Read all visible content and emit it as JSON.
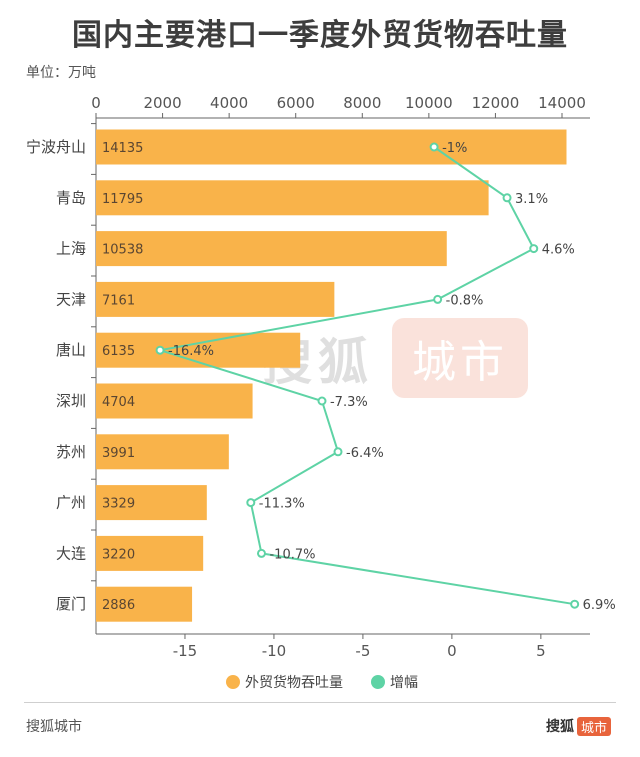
{
  "title": "国内主要港口一季度外贸货物吞吐量",
  "unit_label": "单位：万吨",
  "footer": {
    "brand": "搜狐城市",
    "logo_main": "搜狐",
    "logo_tag": "城市"
  },
  "watermark": {
    "main": "搜狐",
    "tag": "城市"
  },
  "colors": {
    "bar": "#F9B34A",
    "line": "#5ED3A5",
    "axis": "#666666",
    "grid": "#d9d9d9"
  },
  "chart_data": {
    "type": "bar",
    "orientation": "horizontal",
    "categories": [
      "宁波舟山",
      "青岛",
      "上海",
      "天津",
      "唐山",
      "深圳",
      "苏州",
      "广州",
      "大连",
      "厦门"
    ],
    "series": [
      {
        "name": "外贸货物吞吐量",
        "type": "bar",
        "values": [
          14135,
          11795,
          10538,
          7161,
          6135,
          4704,
          3991,
          3329,
          3220,
          2886
        ],
        "value_labels": [
          "14135",
          "11795",
          "10538",
          "7161",
          "6135",
          "4704",
          "3991",
          "3329",
          "3220",
          "2886"
        ],
        "axis": "top",
        "xlim": [
          0,
          14000
        ],
        "ticks": [
          0,
          2000,
          4000,
          6000,
          8000,
          10000,
          12000,
          14000
        ],
        "tick_labels": [
          "0",
          "2000",
          "4000",
          "6000",
          "8000",
          "10000",
          "12000",
          "14000"
        ]
      },
      {
        "name": "增幅",
        "type": "line",
        "values": [
          -1,
          3.1,
          4.6,
          -0.8,
          -16.4,
          -7.3,
          -6.4,
          -11.3,
          -10.7,
          6.9
        ],
        "value_labels": [
          "-1%",
          "3.1%",
          "4.6%",
          "-0.8%",
          "-16.4%",
          "-7.3%",
          "-6.4%",
          "-11.3%",
          "-10.7%",
          "6.9%"
        ],
        "axis": "bottom",
        "xlim": [
          -20,
          7.2
        ],
        "ticks": [
          -15,
          -10,
          -5,
          0,
          5
        ],
        "tick_labels": [
          "-15",
          "-10",
          "-5",
          "0",
          "5"
        ]
      }
    ],
    "legend": [
      "外贸货物吞吐量",
      "增幅"
    ],
    "legend_position": "bottom",
    "grid": false
  }
}
